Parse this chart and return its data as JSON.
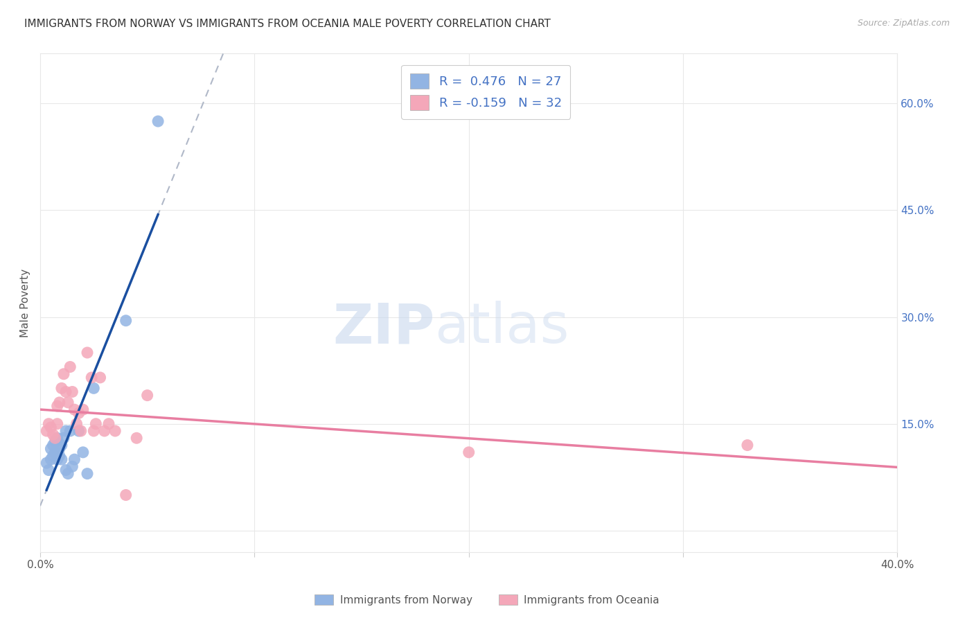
{
  "title": "IMMIGRANTS FROM NORWAY VS IMMIGRANTS FROM OCEANIA MALE POVERTY CORRELATION CHART",
  "source": "Source: ZipAtlas.com",
  "ylabel": "Male Poverty",
  "right_yticks": [
    "60.0%",
    "45.0%",
    "30.0%",
    "15.0%"
  ],
  "right_ytick_vals": [
    0.6,
    0.45,
    0.3,
    0.15
  ],
  "xlim": [
    0.0,
    0.4
  ],
  "ylim": [
    -0.03,
    0.67
  ],
  "norway_color": "#92b4e3",
  "oceania_color": "#f4a7b9",
  "norway_line_color": "#1a4fa0",
  "oceania_line_color": "#e87ea1",
  "norway_R": 0.476,
  "norway_N": 27,
  "oceania_R": -0.159,
  "oceania_N": 32,
  "norway_scatter_x": [
    0.003,
    0.004,
    0.005,
    0.005,
    0.006,
    0.006,
    0.007,
    0.007,
    0.008,
    0.008,
    0.009,
    0.009,
    0.01,
    0.01,
    0.011,
    0.012,
    0.012,
    0.013,
    0.014,
    0.015,
    0.016,
    0.018,
    0.02,
    0.022,
    0.025,
    0.04,
    0.055
  ],
  "norway_scatter_y": [
    0.095,
    0.085,
    0.1,
    0.115,
    0.105,
    0.12,
    0.11,
    0.125,
    0.1,
    0.13,
    0.115,
    0.105,
    0.1,
    0.12,
    0.13,
    0.14,
    0.085,
    0.08,
    0.14,
    0.09,
    0.1,
    0.14,
    0.11,
    0.08,
    0.2,
    0.295,
    0.575
  ],
  "oceania_scatter_x": [
    0.003,
    0.004,
    0.005,
    0.006,
    0.007,
    0.008,
    0.008,
    0.009,
    0.01,
    0.011,
    0.012,
    0.013,
    0.014,
    0.015,
    0.016,
    0.017,
    0.018,
    0.019,
    0.02,
    0.022,
    0.024,
    0.025,
    0.026,
    0.028,
    0.03,
    0.032,
    0.035,
    0.04,
    0.045,
    0.05,
    0.2,
    0.33
  ],
  "oceania_scatter_y": [
    0.14,
    0.15,
    0.145,
    0.135,
    0.13,
    0.15,
    0.175,
    0.18,
    0.2,
    0.22,
    0.195,
    0.18,
    0.23,
    0.195,
    0.17,
    0.15,
    0.165,
    0.14,
    0.17,
    0.25,
    0.215,
    0.14,
    0.15,
    0.215,
    0.14,
    0.15,
    0.14,
    0.05,
    0.13,
    0.19,
    0.11,
    0.12
  ],
  "norway_line_x": [
    0.003,
    0.055
  ],
  "dashed_line_x": [
    0.0,
    0.43
  ],
  "grid_color": "#e8e8e8",
  "background_color": "#ffffff",
  "title_fontsize": 11,
  "legend_fontsize": 13
}
